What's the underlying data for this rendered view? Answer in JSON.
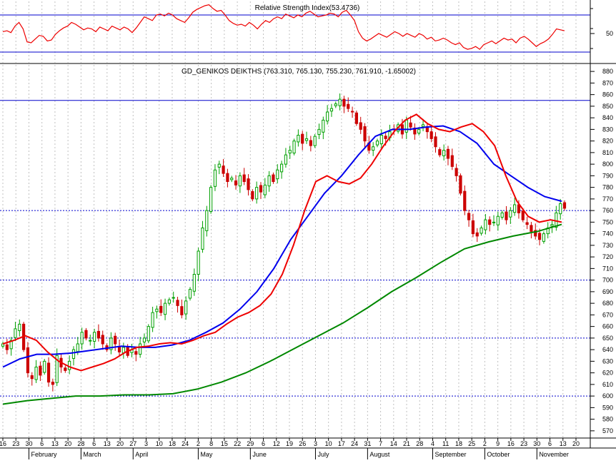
{
  "colors": {
    "background": "#ffffff",
    "up_candle": "#00a000",
    "down_candle": "#cc0000",
    "ma_fast": "#ee0000",
    "ma_mid": "#0000ee",
    "ma_slow": "#008800",
    "rsi_line": "#ee0000",
    "reference_line": "#0000cc",
    "grid": "#c0c0c0"
  },
  "chart_data": [
    {
      "type": "line",
      "title": "Relative Strength Index(53.4736)",
      "ylim": [
        20,
        80
      ],
      "yticks": [
        50
      ],
      "reference_lines": [
        30,
        70
      ],
      "grid": true,
      "series": [
        {
          "values": [
            52,
            53,
            51,
            58,
            62,
            55,
            41,
            40,
            44,
            48,
            47,
            42,
            43,
            49,
            53,
            56,
            58,
            62,
            60,
            57,
            54,
            56,
            55,
            52,
            57,
            55,
            53,
            58,
            56,
            54,
            57,
            55,
            51,
            56,
            62,
            68,
            66,
            64,
            70,
            71,
            69,
            72,
            70,
            66,
            64,
            62,
            67,
            73,
            76,
            78,
            80,
            81,
            77,
            74,
            75,
            70,
            64,
            61,
            59,
            60,
            58,
            62,
            59,
            55,
            60,
            64,
            62,
            66,
            68,
            66,
            71,
            69,
            67,
            70,
            68,
            72,
            74,
            71,
            68,
            69,
            70,
            72,
            71,
            68,
            73,
            75,
            70,
            64,
            52,
            45,
            42,
            44,
            47,
            50,
            48,
            46,
            49,
            52,
            50,
            47,
            50,
            48,
            46,
            50,
            48,
            44,
            46,
            42,
            43,
            45,
            43,
            40,
            38,
            40,
            35,
            33,
            34,
            36,
            33,
            38,
            40,
            42,
            39,
            42,
            45,
            43,
            44,
            40,
            45,
            47,
            44,
            40,
            36,
            39,
            41,
            44,
            49,
            55,
            54,
            53
          ]
        }
      ]
    },
    {
      "type": "candlestick",
      "title": "GD_GENIKOS DEIKTHS (763.310, 765.130, 755.230, 761.910, -1.65002)",
      "ylim": [
        565,
        885
      ],
      "yticks": [
        570,
        580,
        590,
        600,
        610,
        620,
        630,
        640,
        650,
        660,
        670,
        680,
        690,
        700,
        710,
        720,
        730,
        740,
        750,
        760,
        770,
        780,
        790,
        800,
        810,
        820,
        830,
        840,
        850,
        860,
        870,
        880
      ],
      "reference_lines": [
        600,
        650,
        700,
        760,
        855
      ],
      "grid": true,
      "x_tick_labels": [
        "16",
        "23",
        "30",
        "6",
        "13",
        "20",
        "28",
        "6",
        "13",
        "20",
        "27",
        "3",
        "10",
        "18",
        "24",
        "2",
        "8",
        "15",
        "22",
        "29",
        "6",
        "12",
        "19",
        "26",
        "3",
        "10",
        "17",
        "24",
        "31",
        "7",
        "14",
        "21",
        "28",
        "4",
        "11",
        "18",
        "25",
        "2",
        "9",
        "16",
        "23",
        "30",
        "6",
        "13",
        "20"
      ],
      "month_labels": [
        "February",
        "March",
        "April",
        "May",
        "June",
        "July",
        "August",
        "September",
        "October",
        "November"
      ],
      "series": [
        {
          "name": "close",
          "values": [
            645,
            640,
            648,
            658,
            662,
            640,
            620,
            615,
            625,
            618,
            630,
            612,
            610,
            635,
            625,
            622,
            630,
            640,
            645,
            655,
            650,
            648,
            655,
            650,
            645,
            640,
            650,
            645,
            638,
            642,
            635,
            640,
            636,
            645,
            650,
            660,
            672,
            675,
            672,
            680,
            683,
            685,
            678,
            670,
            682,
            692,
            705,
            725,
            745,
            760,
            780,
            795,
            800,
            792,
            785,
            788,
            782,
            790,
            785,
            778,
            770,
            780,
            776,
            782,
            790,
            785,
            795,
            800,
            808,
            812,
            820,
            825,
            818,
            822,
            816,
            824,
            830,
            838,
            845,
            848,
            852,
            856,
            850,
            848,
            845,
            835,
            830,
            820,
            812,
            815,
            820,
            825,
            822,
            828,
            830,
            834,
            826,
            838,
            832,
            826,
            830,
            834,
            828,
            822,
            815,
            808,
            812,
            805,
            798,
            790,
            775,
            760,
            752,
            740,
            738,
            745,
            752,
            748,
            750,
            755,
            758,
            752,
            760,
            765,
            758,
            752,
            748,
            742,
            738,
            735,
            740,
            745,
            748,
            758,
            766,
            762
          ]
        },
        {
          "name": "ma_fast",
          "values": [
            645,
            648,
            652,
            648,
            638,
            630,
            625,
            622,
            625,
            628,
            632,
            638,
            642,
            643,
            645,
            646,
            645,
            648,
            652,
            655,
            662,
            668,
            672,
            678,
            688,
            705,
            730,
            760,
            785,
            790,
            785,
            783,
            788,
            800,
            815,
            828,
            838,
            843,
            835,
            830,
            828,
            832,
            835,
            828,
            816,
            790,
            768,
            755,
            750,
            752,
            750
          ]
        },
        {
          "name": "ma_mid",
          "values": [
            625,
            632,
            636,
            636,
            637,
            639,
            641,
            643,
            642,
            642,
            644,
            648,
            655,
            663,
            675,
            690,
            710,
            735,
            755,
            775,
            790,
            808,
            824,
            830,
            830,
            832,
            833,
            828,
            818,
            800,
            790,
            780,
            772,
            768
          ]
        },
        {
          "name": "ma_slow",
          "values": [
            593,
            596,
            598,
            600,
            600,
            601,
            601,
            602,
            606,
            612,
            620,
            630,
            641,
            652,
            663,
            676,
            690,
            702,
            715,
            727,
            733,
            738,
            742,
            748
          ]
        }
      ]
    }
  ]
}
